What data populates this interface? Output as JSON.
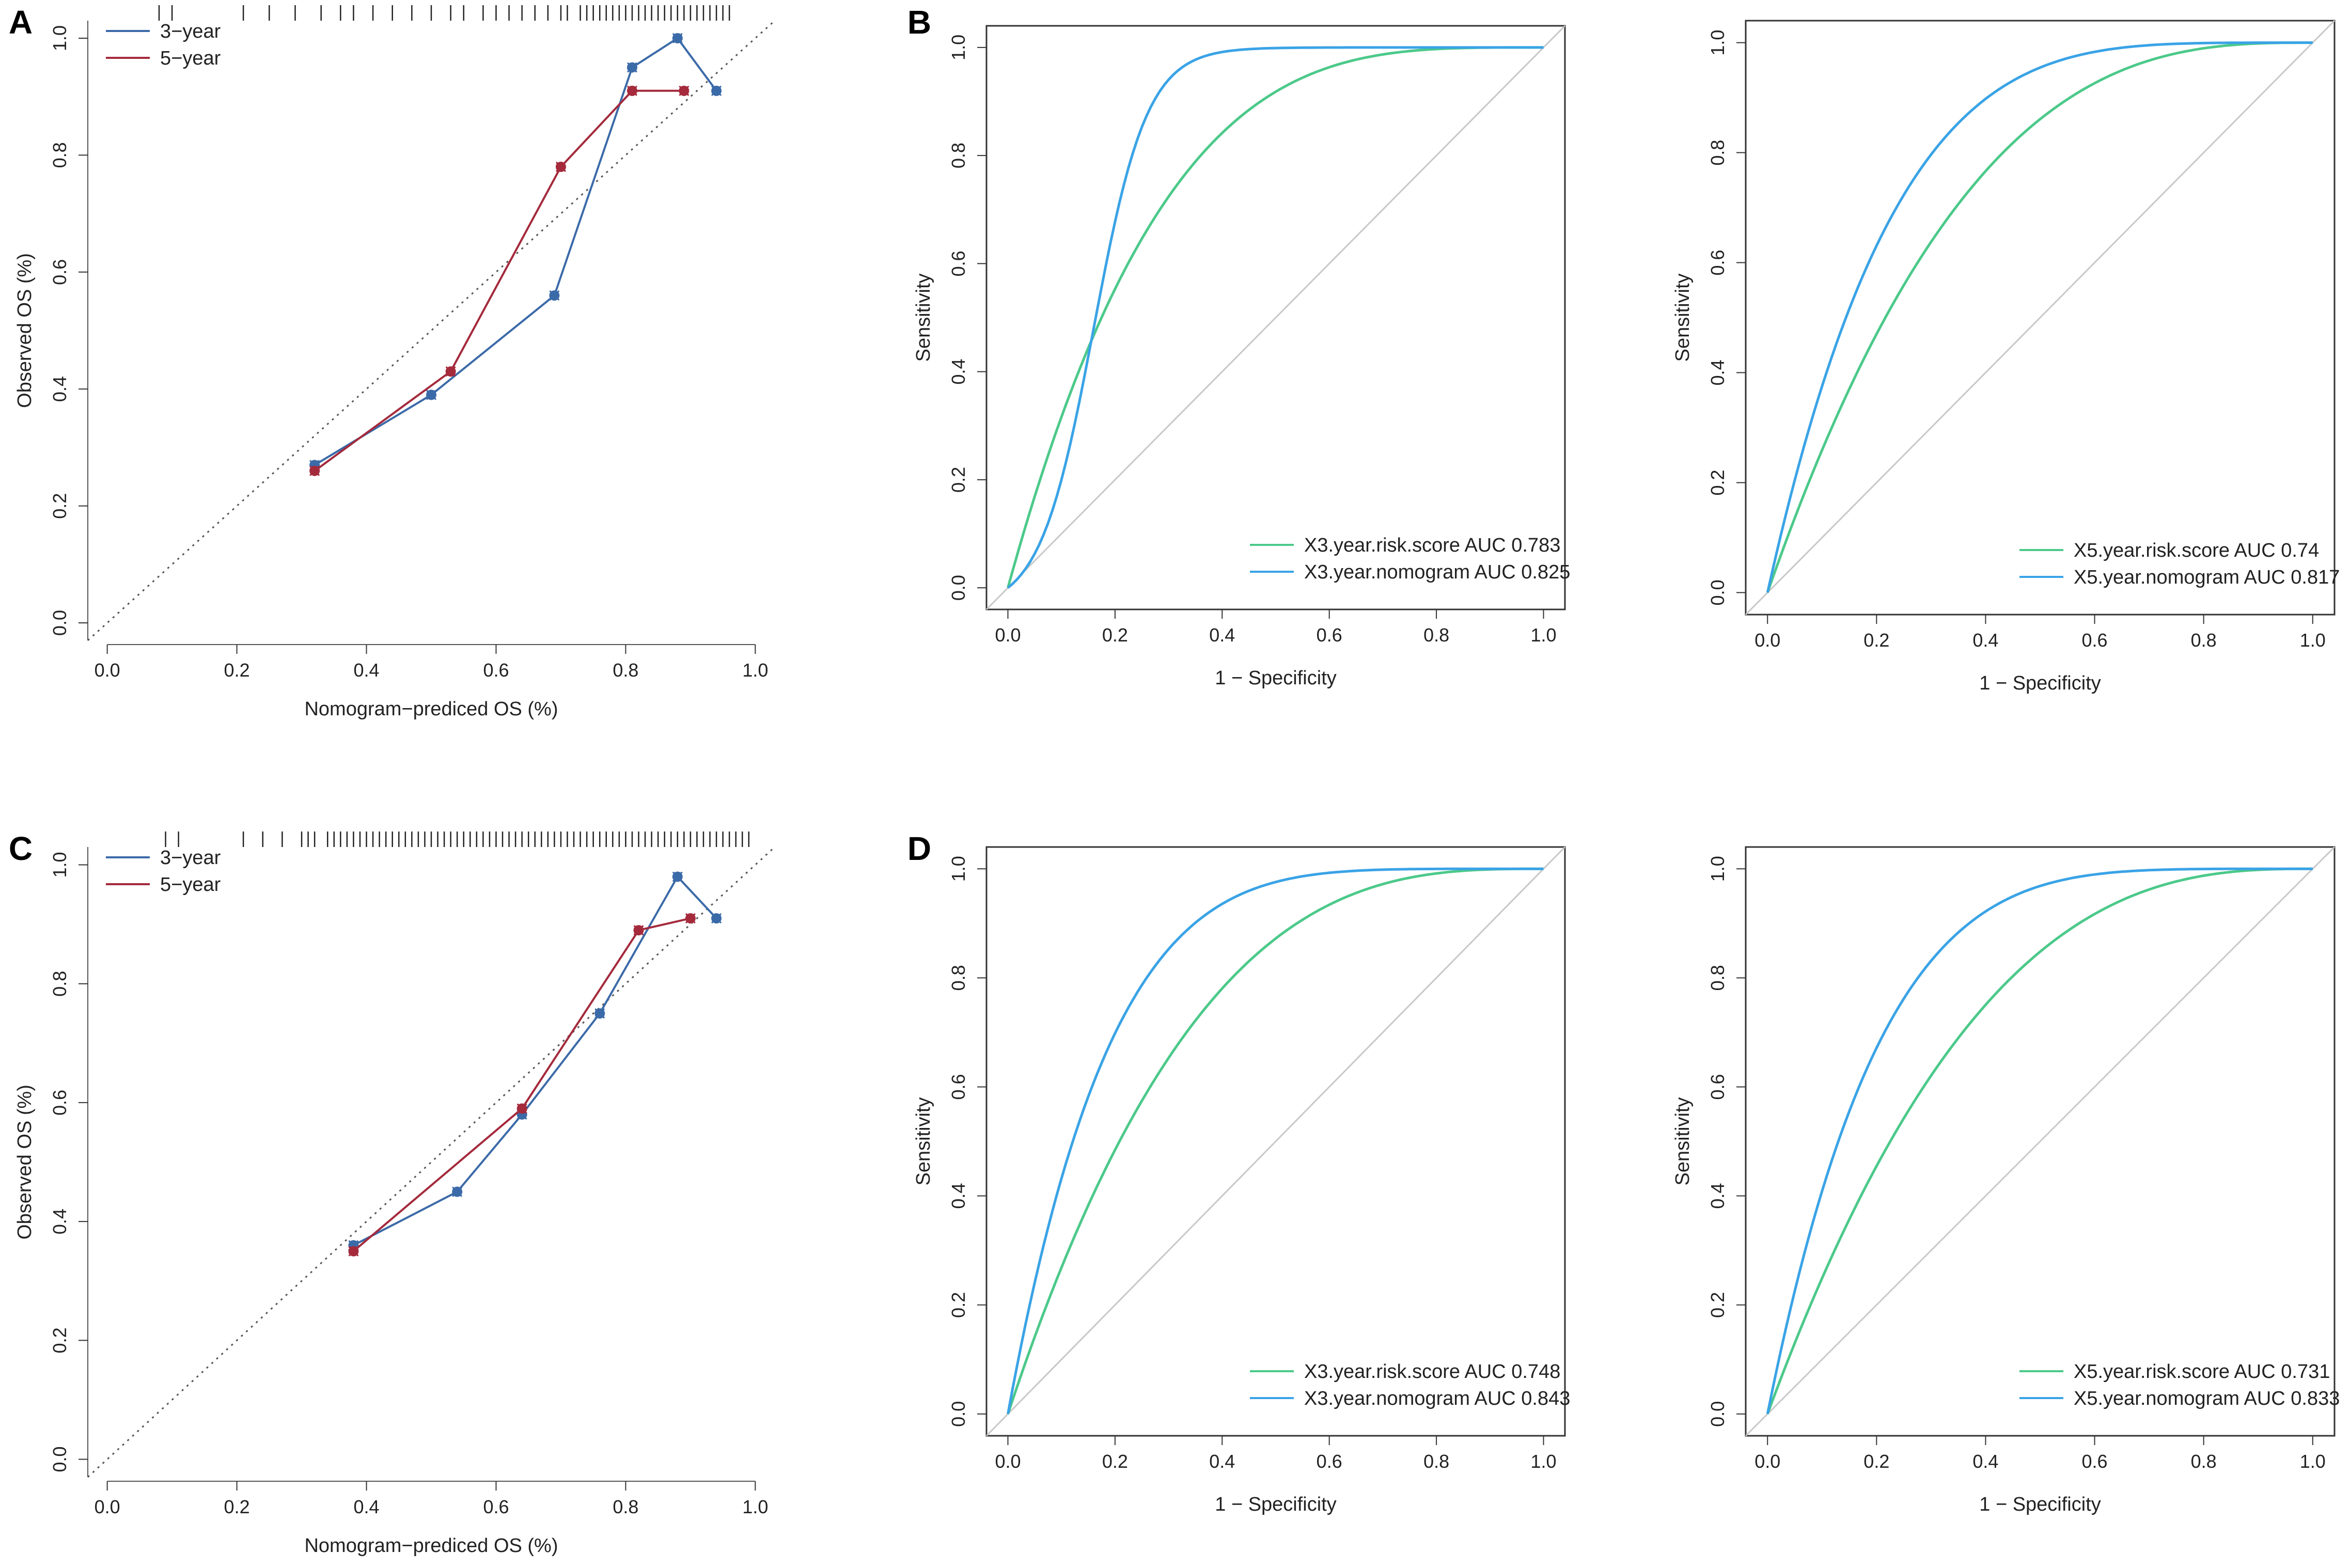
{
  "figure": {
    "panel_labels": [
      "A",
      "B",
      "C",
      "D"
    ]
  },
  "colors": {
    "three_year": "#3b6aa8",
    "five_year": "#a42a3c",
    "risk_score": "#4cc98a",
    "nomogram": "#3aa3e6",
    "diagonal": "#c8c8c8",
    "rug": "#222222"
  },
  "chart_data": [
    {
      "id": "A",
      "type": "line",
      "subtype": "calibration",
      "panel_label": "A",
      "xlabel": "Nomogram−prediced OS (%)",
      "ylabel": "Observed OS (%)",
      "xlim": [
        -0.03,
        1.03
      ],
      "ylim": [
        -0.03,
        1.03
      ],
      "xticks": [
        "0.0",
        "0.2",
        "0.4",
        "0.6",
        "0.8",
        "1.0"
      ],
      "yticks": [
        "0.0",
        "0.2",
        "0.4",
        "0.6",
        "0.8",
        "1.0"
      ],
      "legend": [
        "3−year",
        "5−year"
      ],
      "legend_position": "top-left",
      "series": [
        {
          "name": "3−year",
          "x": [
            0.32,
            0.5,
            0.69,
            0.81,
            0.88,
            0.94
          ],
          "y": [
            0.27,
            0.39,
            0.56,
            0.95,
            1.0,
            0.91
          ]
        },
        {
          "name": "5−year",
          "x": [
            0.32,
            0.53,
            0.7,
            0.81,
            0.89
          ],
          "y": [
            0.26,
            0.43,
            0.78,
            0.91,
            0.91
          ]
        }
      ],
      "rug": [
        0.08,
        0.1,
        0.21,
        0.25,
        0.29,
        0.33,
        0.36,
        0.38,
        0.41,
        0.44,
        0.47,
        0.5,
        0.53,
        0.55,
        0.58,
        0.6,
        0.62,
        0.64,
        0.66,
        0.68,
        0.7,
        0.71,
        0.73,
        0.74,
        0.75,
        0.76,
        0.77,
        0.78,
        0.79,
        0.8,
        0.81,
        0.82,
        0.83,
        0.84,
        0.85,
        0.86,
        0.87,
        0.88,
        0.89,
        0.9,
        0.91,
        0.92,
        0.93,
        0.94,
        0.95,
        0.96
      ]
    },
    {
      "id": "B1",
      "type": "line",
      "subtype": "roc",
      "panel_label": "B",
      "xlabel": "1 − Specificity",
      "ylabel": "Sensitivity",
      "xlim": [
        -0.04,
        1.04
      ],
      "ylim": [
        -0.04,
        1.04
      ],
      "xticks": [
        "0.0",
        "0.2",
        "0.4",
        "0.6",
        "0.8",
        "1.0"
      ],
      "yticks": [
        "0.0",
        "0.2",
        "0.4",
        "0.6",
        "0.8",
        "1.0"
      ],
      "legend_position": "bottom-right",
      "series": [
        {
          "name": "X3.year.risk.score",
          "auc": "0.783",
          "label": "X3.year.risk.score AUC 0.783"
        },
        {
          "name": "X3.year.nomogram",
          "auc": "0.825",
          "label": "X3.year.nomogram AUC 0.825"
        }
      ]
    },
    {
      "id": "B2",
      "type": "line",
      "subtype": "roc",
      "xlabel": "1 − Specificity",
      "ylabel": "Sensitivity",
      "xlim": [
        -0.04,
        1.04
      ],
      "ylim": [
        -0.04,
        1.04
      ],
      "xticks": [
        "0.0",
        "0.2",
        "0.4",
        "0.6",
        "0.8",
        "1.0"
      ],
      "yticks": [
        "0.0",
        "0.2",
        "0.4",
        "0.6",
        "0.8",
        "1.0"
      ],
      "legend_position": "bottom-right",
      "series": [
        {
          "name": "X5.year.risk.score",
          "auc": "0.74",
          "label": "X5.year.risk.score AUC 0.74"
        },
        {
          "name": "X5.year.nomogram",
          "auc": "0.817",
          "label": "X5.year.nomogram AUC 0.817"
        }
      ]
    },
    {
      "id": "C",
      "type": "line",
      "subtype": "calibration",
      "panel_label": "C",
      "xlabel": "Nomogram−prediced OS (%)",
      "ylabel": "Observed OS (%)",
      "xlim": [
        -0.03,
        1.03
      ],
      "ylim": [
        -0.03,
        1.03
      ],
      "xticks": [
        "0.0",
        "0.2",
        "0.4",
        "0.6",
        "0.8",
        "1.0"
      ],
      "yticks": [
        "0.0",
        "0.2",
        "0.4",
        "0.6",
        "0.8",
        "1.0"
      ],
      "legend": [
        "3−year",
        "5−year"
      ],
      "legend_position": "top-left",
      "series": [
        {
          "name": "3−year",
          "x": [
            0.38,
            0.54,
            0.64,
            0.76,
            0.88,
            0.94
          ],
          "y": [
            0.36,
            0.45,
            0.58,
            0.75,
            0.98,
            0.91
          ]
        },
        {
          "name": "5−year",
          "x": [
            0.38,
            0.64,
            0.82,
            0.9
          ],
          "y": [
            0.35,
            0.59,
            0.89,
            0.91
          ]
        }
      ],
      "rug": [
        0.09,
        0.11,
        0.21,
        0.24,
        0.27,
        0.3,
        0.31,
        0.32,
        0.34,
        0.35,
        0.36,
        0.37,
        0.38,
        0.39,
        0.4,
        0.41,
        0.42,
        0.43,
        0.44,
        0.45,
        0.46,
        0.47,
        0.48,
        0.49,
        0.5,
        0.51,
        0.52,
        0.53,
        0.54,
        0.55,
        0.56,
        0.57,
        0.58,
        0.59,
        0.6,
        0.61,
        0.62,
        0.63,
        0.64,
        0.65,
        0.66,
        0.67,
        0.68,
        0.69,
        0.7,
        0.71,
        0.72,
        0.73,
        0.74,
        0.75,
        0.76,
        0.77,
        0.78,
        0.79,
        0.8,
        0.81,
        0.82,
        0.83,
        0.84,
        0.85,
        0.86,
        0.87,
        0.88,
        0.89,
        0.9,
        0.91,
        0.92,
        0.93,
        0.94,
        0.95,
        0.96,
        0.97,
        0.98,
        0.99
      ]
    },
    {
      "id": "D1",
      "type": "line",
      "subtype": "roc",
      "panel_label": "D",
      "xlabel": "1 − Specificity",
      "ylabel": "Sensitivity",
      "xlim": [
        -0.04,
        1.04
      ],
      "ylim": [
        -0.04,
        1.04
      ],
      "xticks": [
        "0.0",
        "0.2",
        "0.4",
        "0.6",
        "0.8",
        "1.0"
      ],
      "yticks": [
        "0.0",
        "0.2",
        "0.4",
        "0.6",
        "0.8",
        "1.0"
      ],
      "legend_position": "bottom-right",
      "series": [
        {
          "name": "X3.year.risk.score",
          "auc": "0.748",
          "label": "X3.year.risk.score AUC 0.748"
        },
        {
          "name": "X3.year.nomogram",
          "auc": "0.843",
          "label": "X3.year.nomogram AUC 0.843"
        }
      ]
    },
    {
      "id": "D2",
      "type": "line",
      "subtype": "roc",
      "xlabel": "1 − Specificity",
      "ylabel": "Sensitivity",
      "xlim": [
        -0.04,
        1.04
      ],
      "ylim": [
        -0.04,
        1.04
      ],
      "xticks": [
        "0.0",
        "0.2",
        "0.4",
        "0.6",
        "0.8",
        "1.0"
      ],
      "yticks": [
        "0.0",
        "0.2",
        "0.4",
        "0.6",
        "0.8",
        "1.0"
      ],
      "legend_position": "bottom-right",
      "series": [
        {
          "name": "X5.year.risk.score",
          "auc": "0.731",
          "label": "X5.year.risk.score AUC 0.731"
        },
        {
          "name": "X5.year.nomogram",
          "auc": "0.833",
          "label": "X5.year.nomogram AUC 0.833"
        }
      ]
    }
  ]
}
